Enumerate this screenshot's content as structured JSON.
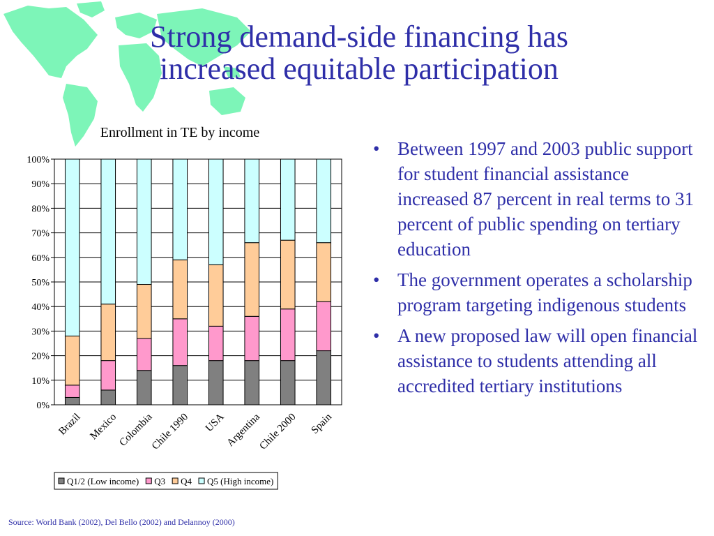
{
  "slide": {
    "title_lines": [
      "Strong demand-side financing has",
      "increased equitable participation"
    ],
    "bullets": [
      "Between 1997 and 2003 public support for student financial assistance increased 87 percent in real terms to 31 percent of public spending on tertiary education",
      "The government operates a scholarship program targeting indigenous students",
      "A new proposed law will open financial assistance to students attending all accredited tertiary institutions"
    ],
    "source": "Source: World Bank (2002), Del Bello (2002) and Delannoy (2000)"
  },
  "colors": {
    "title": "#2e2ea8",
    "map": "#7df5b8",
    "q12": "#808080",
    "q3": "#ff99cc",
    "q4": "#ffcc99",
    "q5": "#ccffff"
  },
  "chart_data": {
    "type": "bar",
    "stacked": true,
    "title": "Enrollment in TE by income",
    "categories": [
      "Brazil",
      "Mexico",
      "Colombia",
      "Chile 1990",
      "USA",
      "Argentina",
      "Chile 2000",
      "Spain"
    ],
    "series": [
      {
        "name": "Q1/2 (Low income)",
        "values": [
          3,
          6,
          14,
          16,
          18,
          18,
          18,
          22
        ]
      },
      {
        "name": "Q3",
        "values": [
          5,
          12,
          13,
          19,
          14,
          18,
          21,
          20
        ]
      },
      {
        "name": "Q4",
        "values": [
          20,
          23,
          22,
          24,
          25,
          30,
          28,
          24
        ]
      },
      {
        "name": "Q5 (High income)",
        "values": [
          72,
          59,
          51,
          41,
          43,
          34,
          33,
          34
        ]
      }
    ],
    "yticks": [
      "0%",
      "10%",
      "20%",
      "30%",
      "40%",
      "50%",
      "60%",
      "70%",
      "80%",
      "90%",
      "100%"
    ],
    "ylim": [
      0,
      100
    ],
    "grid": true,
    "legend": "bottom"
  }
}
